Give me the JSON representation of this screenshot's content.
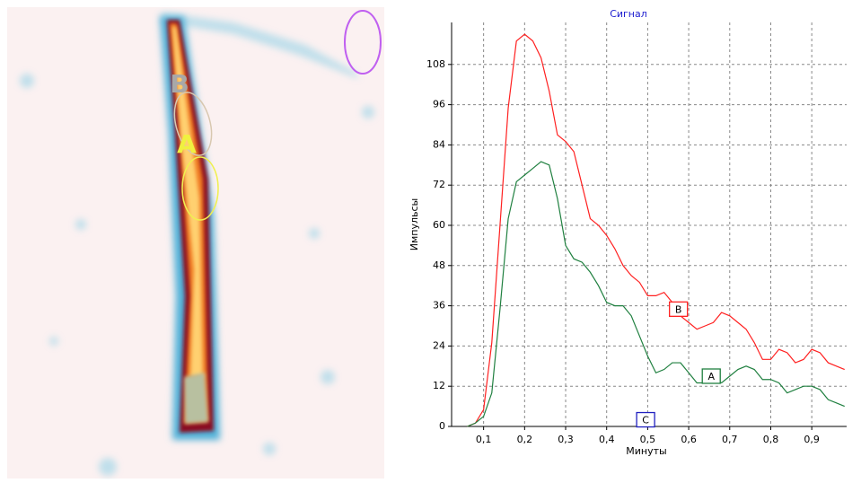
{
  "image": {
    "labels": [
      {
        "text": "B",
        "color": "#a8a8a8"
      },
      {
        "text": "A",
        "color": "#f0f040"
      }
    ]
  },
  "chart_data": {
    "type": "line",
    "title": "Сигнал",
    "x_label": "Минуты",
    "y_label": "Импульсы",
    "x": [
      0.06,
      0.08,
      0.1,
      0.12,
      0.14,
      0.16,
      0.18,
      0.2,
      0.22,
      0.24,
      0.26,
      0.28,
      0.3,
      0.32,
      0.34,
      0.36,
      0.38,
      0.4,
      0.42,
      0.44,
      0.46,
      0.48,
      0.5,
      0.52,
      0.54,
      0.56,
      0.58,
      0.6,
      0.62,
      0.64,
      0.66,
      0.68,
      0.7,
      0.72,
      0.74,
      0.76,
      0.78,
      0.8,
      0.82,
      0.84,
      0.86,
      0.88,
      0.9,
      0.92,
      0.94,
      0.96,
      0.98
    ],
    "series": [
      {
        "name": "B",
        "color": "#ff2020",
        "values": [
          0,
          1,
          5,
          25,
          60,
          95,
          115,
          117,
          115,
          110,
          100,
          87,
          85,
          82,
          72,
          62,
          60,
          57,
          53,
          48,
          45,
          43,
          39,
          39,
          40,
          37,
          33,
          31,
          29,
          30,
          31,
          34,
          33,
          31,
          29,
          25,
          20,
          20,
          23,
          22,
          19,
          20,
          23,
          22,
          19,
          18,
          17
        ]
      },
      {
        "name": "A",
        "color": "#208040",
        "values": [
          0,
          1,
          3,
          10,
          35,
          62,
          73,
          75,
          77,
          79,
          78,
          68,
          54,
          50,
          49,
          46,
          42,
          37,
          36,
          36,
          33,
          27,
          21,
          16,
          17,
          19,
          19,
          16,
          13,
          13,
          14,
          13,
          15,
          17,
          18,
          17,
          14,
          14,
          13,
          10,
          11,
          12,
          12,
          11,
          8,
          7,
          6
        ]
      }
    ],
    "annotations": [
      {
        "text": "B",
        "x": 0.575,
        "y": 35,
        "color": "#ff2020"
      },
      {
        "text": "A",
        "x": 0.655,
        "y": 15,
        "color": "#208040"
      },
      {
        "text": "C",
        "x": 0.495,
        "y": 2,
        "color": "#2020c0"
      }
    ],
    "xlim": [
      0.022,
      0.985
    ],
    "ylim": [
      0,
      120
    ],
    "xticks": [
      {
        "value": 0.1,
        "label": "0,1"
      },
      {
        "value": 0.2,
        "label": "0,2"
      },
      {
        "value": 0.3,
        "label": "0,3"
      },
      {
        "value": 0.4,
        "label": "0,4"
      },
      {
        "value": 0.5,
        "label": "0,5"
      },
      {
        "value": 0.6,
        "label": "0,6"
      },
      {
        "value": 0.7,
        "label": "0,7"
      },
      {
        "value": 0.8,
        "label": "0,8"
      },
      {
        "value": 0.9,
        "label": "0,9"
      }
    ],
    "yticks": [
      0,
      12,
      24,
      36,
      48,
      60,
      72,
      84,
      96,
      108
    ],
    "grid": true
  }
}
